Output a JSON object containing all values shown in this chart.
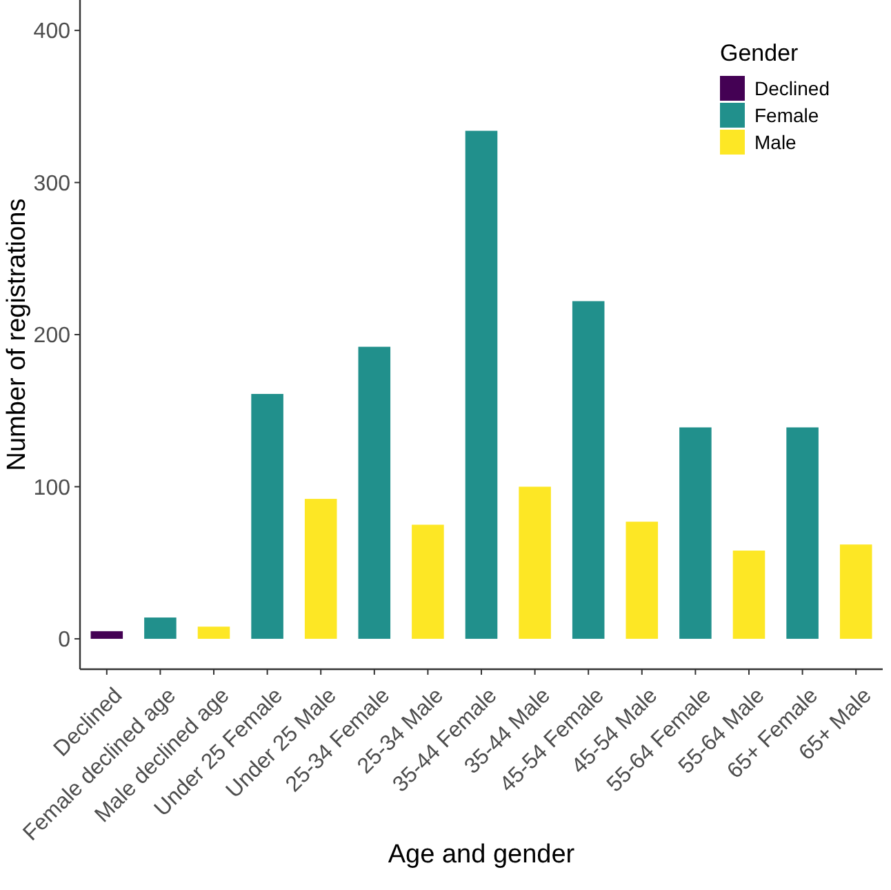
{
  "chart_data": {
    "type": "bar",
    "xlabel": "Age and gender",
    "ylabel": "Number of registrations",
    "legend_title": "Gender",
    "categories": [
      "Declined",
      "Female declined age",
      "Male declined age",
      "Under 25 Female",
      "Under 25 Male",
      "25-34 Female",
      "25-34 Male",
      "35-44 Female",
      "35-44 Male",
      "45-54 Female",
      "45-54 Male",
      "55-64 Female",
      "55-64 Male",
      "65+ Female",
      "65+ Male"
    ],
    "series": [
      {
        "name": "Declined",
        "color": "#440154",
        "values": [
          5,
          null,
          null,
          null,
          null,
          null,
          null,
          null,
          null,
          null,
          null,
          null,
          null,
          null,
          null
        ]
      },
      {
        "name": "Female",
        "color": "#21908c",
        "values": [
          null,
          14,
          null,
          161,
          null,
          192,
          null,
          334,
          null,
          222,
          null,
          139,
          null,
          139,
          null
        ]
      },
      {
        "name": "Male",
        "color": "#fde725",
        "values": [
          null,
          null,
          8,
          null,
          92,
          null,
          75,
          null,
          100,
          null,
          77,
          null,
          58,
          null,
          62
        ]
      }
    ],
    "ylim": [
      -20,
      420
    ],
    "yticks": [
      0,
      100,
      200,
      300,
      400
    ],
    "legend": "top right",
    "grid": false
  }
}
